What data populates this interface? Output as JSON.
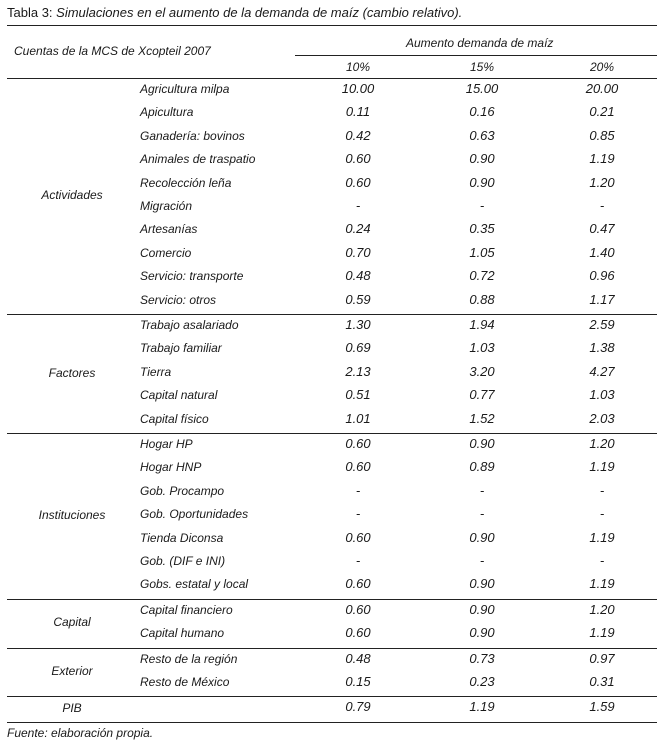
{
  "caption": {
    "lead": "Tabla 3:",
    "text": "Simulaciones en el aumento de la demanda de maíz (cambio relativo)."
  },
  "header": {
    "left": "Cuentas de la MCS de Xcopteil 2007",
    "span": "Aumento demanda de maíz",
    "cols": [
      "10%",
      "15%",
      "20%"
    ]
  },
  "groups": [
    {
      "name": "Actividades",
      "rows": [
        {
          "label": "Agricultura milpa",
          "values": [
            "10.00",
            "15.00",
            "20.00"
          ]
        },
        {
          "label": "Apicultura",
          "values": [
            "0.11",
            "0.16",
            "0.21"
          ]
        },
        {
          "label": "Ganadería: bovinos",
          "values": [
            "0.42",
            "0.63",
            "0.85"
          ]
        },
        {
          "label": "Animales de traspatio",
          "values": [
            "0.60",
            "0.90",
            "1.19"
          ]
        },
        {
          "label": "Recolección leña",
          "values": [
            "0.60",
            "0.90",
            "1.20"
          ]
        },
        {
          "label": "Migración",
          "values": [
            "-",
            "-",
            "-"
          ]
        },
        {
          "label": "Artesanías",
          "values": [
            "0.24",
            "0.35",
            "0.47"
          ]
        },
        {
          "label": "Comercio",
          "values": [
            "0.70",
            "1.05",
            "1.40"
          ]
        },
        {
          "label": "Servicio: transporte",
          "values": [
            "0.48",
            "0.72",
            "0.96"
          ]
        },
        {
          "label": "Servicio: otros",
          "values": [
            "0.59",
            "0.88",
            "1.17"
          ]
        }
      ]
    },
    {
      "name": "Factores",
      "rows": [
        {
          "label": "Trabajo asalariado",
          "values": [
            "1.30",
            "1.94",
            "2.59"
          ]
        },
        {
          "label": "Trabajo familiar",
          "values": [
            "0.69",
            "1.03",
            "1.38"
          ]
        },
        {
          "label": "Tierra",
          "values": [
            "2.13",
            "3.20",
            "4.27"
          ]
        },
        {
          "label": "Capital natural",
          "values": [
            "0.51",
            "0.77",
            "1.03"
          ]
        },
        {
          "label": "Capital físico",
          "values": [
            "1.01",
            "1.52",
            "2.03"
          ]
        }
      ]
    },
    {
      "name": "Instituciones",
      "rows": [
        {
          "label": "Hogar HP",
          "values": [
            "0.60",
            "0.90",
            "1.20"
          ]
        },
        {
          "label": "Hogar HNP",
          "values": [
            "0.60",
            "0.89",
            "1.19"
          ]
        },
        {
          "label": "Gob. Procampo",
          "values": [
            "-",
            "-",
            "-"
          ]
        },
        {
          "label": "Gob. Oportunidades",
          "values": [
            "-",
            "-",
            "-"
          ]
        },
        {
          "label": "Tienda Diconsa",
          "values": [
            "0.60",
            "0.90",
            "1.19"
          ]
        },
        {
          "label": "Gob. (DIF e INI)",
          "values": [
            "-",
            "-",
            "-"
          ]
        },
        {
          "label": "Gobs. estatal y local",
          "values": [
            "0.60",
            "0.90",
            "1.19"
          ]
        }
      ]
    },
    {
      "name": "Capital",
      "rows": [
        {
          "label": "Capital financiero",
          "values": [
            "0.60",
            "0.90",
            "1.20"
          ]
        },
        {
          "label": "Capital humano",
          "values": [
            "0.60",
            "0.90",
            "1.19"
          ]
        }
      ]
    },
    {
      "name": "Exterior",
      "rows": [
        {
          "label": "Resto de la región",
          "values": [
            "0.48",
            "0.73",
            "0.97"
          ]
        },
        {
          "label": "Resto de México",
          "values": [
            "0.15",
            "0.23",
            "0.31"
          ]
        }
      ]
    },
    {
      "name": "PIB",
      "rows": [
        {
          "label": "",
          "values": [
            "0.79",
            "1.19",
            "1.59"
          ]
        }
      ]
    }
  ],
  "source": "Fuente: elaboración propia."
}
